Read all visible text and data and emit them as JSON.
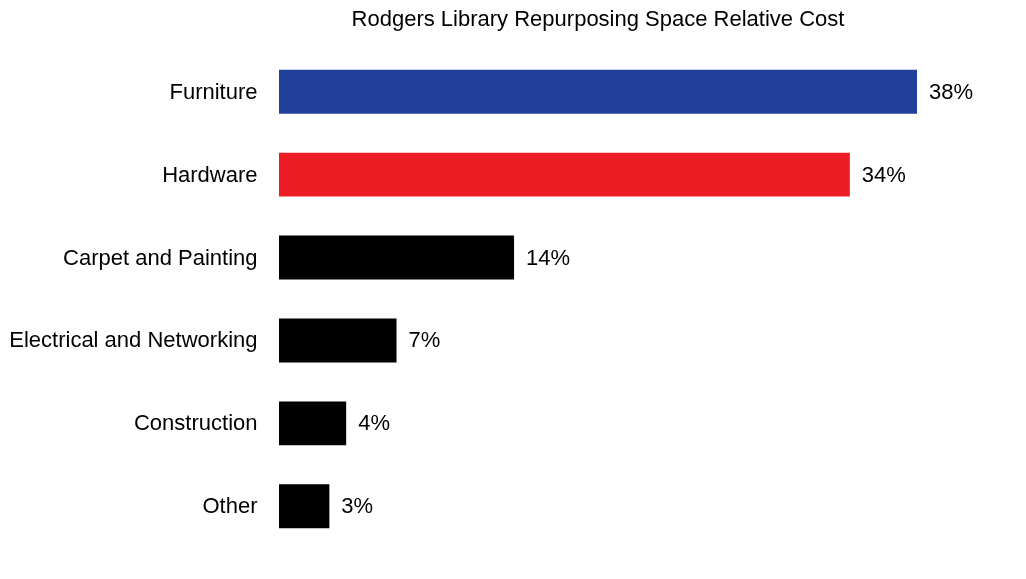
{
  "chart_data": {
    "type": "bar",
    "orientation": "horizontal",
    "title": "Rodgers Library Repurposing Space Relative Cost",
    "categories": [
      "Furniture",
      "Hardware",
      "Carpet and Painting",
      "Electrical and Networking",
      "Construction",
      "Other"
    ],
    "values": [
      38,
      34,
      14,
      7,
      4,
      3
    ],
    "colors": [
      "#21409a",
      "#ed1c24",
      "#000000",
      "#000000",
      "#000000",
      "#000000"
    ],
    "value_labels": [
      "38%",
      "34%",
      "14%",
      "7%",
      "4%",
      "3%"
    ]
  }
}
